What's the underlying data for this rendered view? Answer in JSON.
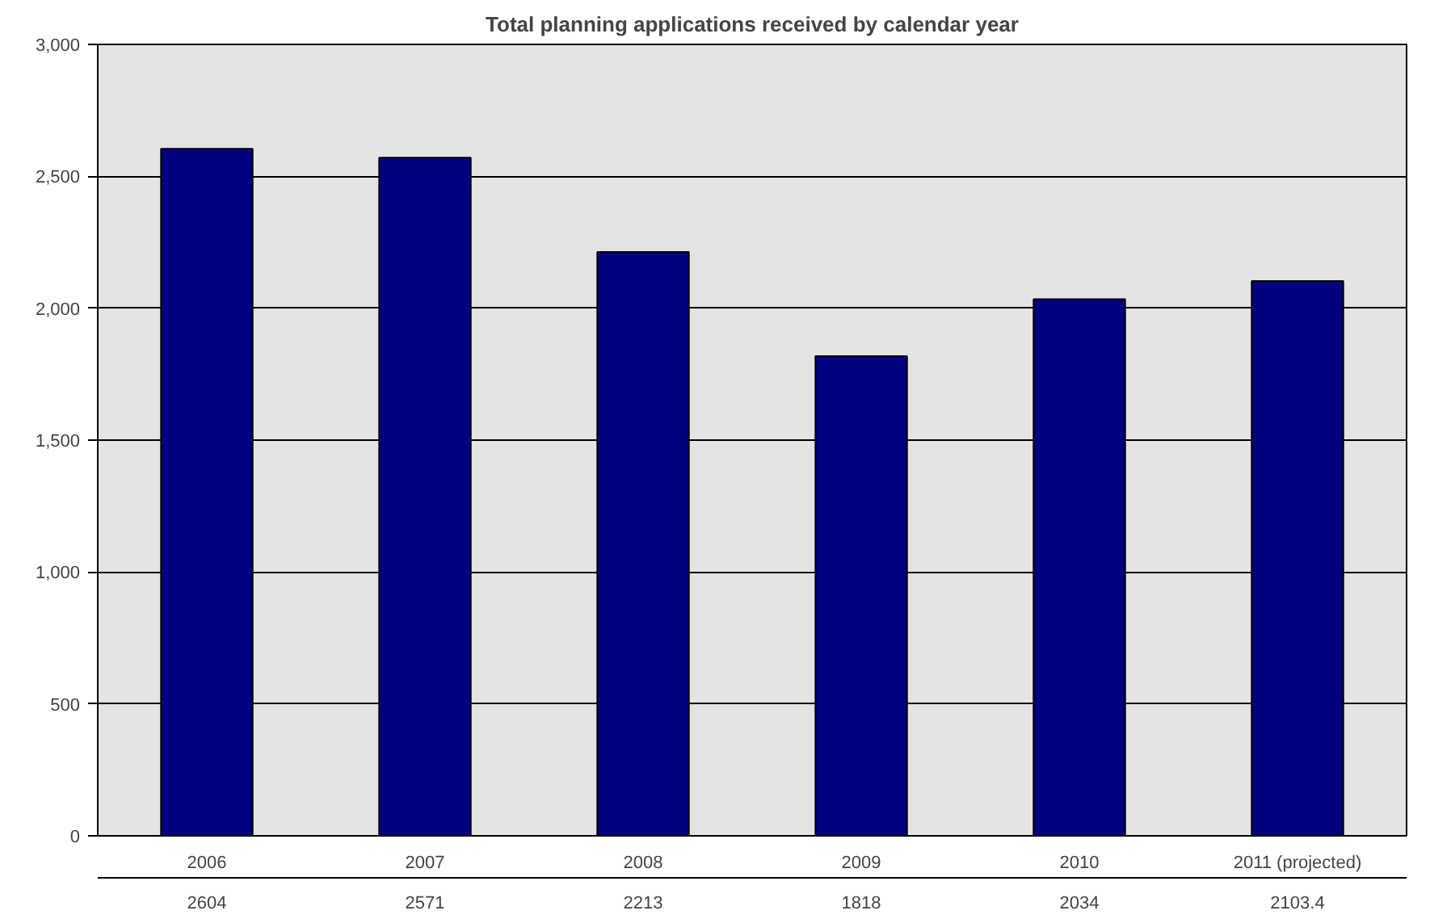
{
  "chart_data": {
    "type": "bar",
    "title": "Total planning applications received by calendar year",
    "categories": [
      "2006",
      "2007",
      "2008",
      "2009",
      "2010",
      "2011 (projected)"
    ],
    "values": [
      2604,
      2571,
      2213,
      1818,
      2034,
      2103.4
    ],
    "value_labels": [
      "2604",
      "2571",
      "2213",
      "1818",
      "2034",
      "2103.4"
    ],
    "color": "#000080",
    "ylim": [
      0,
      3000
    ],
    "yticks": [
      0,
      {
        "value": 500,
        "label": "500"
      },
      {
        "value": 1000,
        "label": "1,000"
      },
      {
        "value": 1500,
        "label": "1,500"
      },
      {
        "value": 2000,
        "label": "2,000"
      },
      {
        "value": 2500,
        "label": "2,500"
      },
      {
        "value": 3000,
        "label": "3,000"
      }
    ],
    "grid": "y"
  }
}
